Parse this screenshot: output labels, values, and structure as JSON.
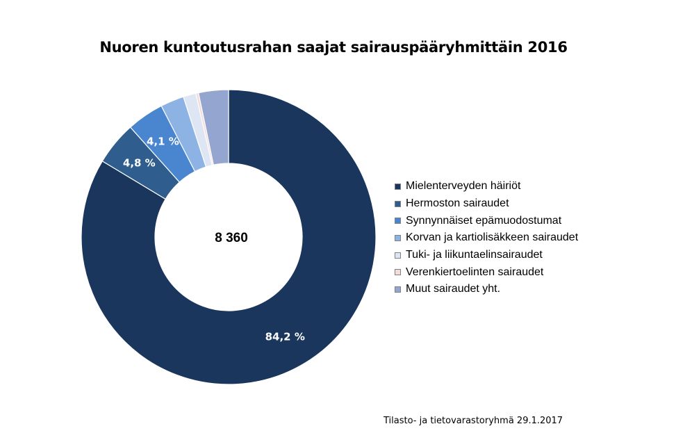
{
  "chart_data": {
    "type": "pie",
    "variant": "donut",
    "title": "Nuoren kuntoutusrahan saajat sairauspääryhmittäin 2016",
    "center_label": "8 360",
    "slices": [
      {
        "label": "Mielenterveyden häiriöt",
        "value": 84.2,
        "display": "84,2 %",
        "color": "#1a365d"
      },
      {
        "label": "Hermoston sairaudet",
        "value": 4.8,
        "display": "4,8 %",
        "color": "#2f5d8e"
      },
      {
        "label": "Synnynnäiset epämuodostumat",
        "value": 4.1,
        "display": "4,1 %",
        "color": "#4a86d0"
      },
      {
        "label": "Korvan ja kartiolisäkkeen sairaudet",
        "value": 2.6,
        "display": "",
        "color": "#8cb3e3"
      },
      {
        "label": "Tuki- ja liikuntaelinsairaudet",
        "value": 1.4,
        "display": "",
        "color": "#dde6f2"
      },
      {
        "label": "Verenkiertoelinten sairaudet",
        "value": 0.3,
        "display": "",
        "color": "#f3dcdc"
      },
      {
        "label": "Muut sairaudet yht.",
        "value": 3.3,
        "display": "",
        "color": "#94a6cf"
      }
    ],
    "legend_position": "right"
  },
  "footer": "Tilasto- ja tietovarastoryhmä 29.1.2017"
}
